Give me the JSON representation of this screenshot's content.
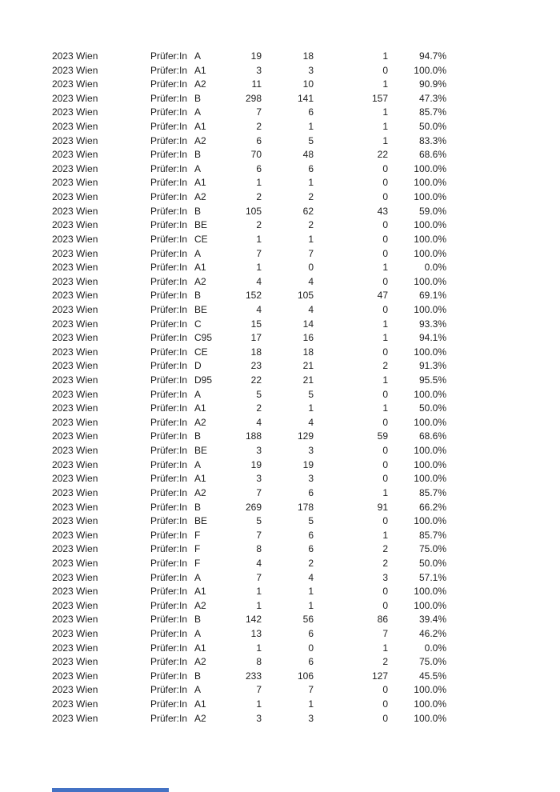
{
  "colors": {
    "page_background": "#ffffff",
    "text": "#1d1d1d",
    "bottom_bar_fragment": "#4472c4"
  },
  "table": {
    "period_label": "2023 Wien",
    "examiner_label": "Prüfer:In",
    "rows": [
      {
        "category": "A",
        "n1": "19",
        "n2": "18",
        "n3": "1",
        "pct": "94.7%"
      },
      {
        "category": "A1",
        "n1": "3",
        "n2": "3",
        "n3": "0",
        "pct": "100.0%"
      },
      {
        "category": "A2",
        "n1": "11",
        "n2": "10",
        "n3": "1",
        "pct": "90.9%"
      },
      {
        "category": "B",
        "n1": "298",
        "n2": "141",
        "n3": "157",
        "pct": "47.3%"
      },
      {
        "category": "A",
        "n1": "7",
        "n2": "6",
        "n3": "1",
        "pct": "85.7%"
      },
      {
        "category": "A1",
        "n1": "2",
        "n2": "1",
        "n3": "1",
        "pct": "50.0%"
      },
      {
        "category": "A2",
        "n1": "6",
        "n2": "5",
        "n3": "1",
        "pct": "83.3%"
      },
      {
        "category": "B",
        "n1": "70",
        "n2": "48",
        "n3": "22",
        "pct": "68.6%"
      },
      {
        "category": "A",
        "n1": "6",
        "n2": "6",
        "n3": "0",
        "pct": "100.0%"
      },
      {
        "category": "A1",
        "n1": "1",
        "n2": "1",
        "n3": "0",
        "pct": "100.0%"
      },
      {
        "category": "A2",
        "n1": "2",
        "n2": "2",
        "n3": "0",
        "pct": "100.0%"
      },
      {
        "category": "B",
        "n1": "105",
        "n2": "62",
        "n3": "43",
        "pct": "59.0%"
      },
      {
        "category": "BE",
        "n1": "2",
        "n2": "2",
        "n3": "0",
        "pct": "100.0%"
      },
      {
        "category": "CE",
        "n1": "1",
        "n2": "1",
        "n3": "0",
        "pct": "100.0%"
      },
      {
        "category": "A",
        "n1": "7",
        "n2": "7",
        "n3": "0",
        "pct": "100.0%"
      },
      {
        "category": "A1",
        "n1": "1",
        "n2": "0",
        "n3": "1",
        "pct": "0.0%"
      },
      {
        "category": "A2",
        "n1": "4",
        "n2": "4",
        "n3": "0",
        "pct": "100.0%"
      },
      {
        "category": "B",
        "n1": "152",
        "n2": "105",
        "n3": "47",
        "pct": "69.1%"
      },
      {
        "category": "BE",
        "n1": "4",
        "n2": "4",
        "n3": "0",
        "pct": "100.0%"
      },
      {
        "category": "C",
        "n1": "15",
        "n2": "14",
        "n3": "1",
        "pct": "93.3%"
      },
      {
        "category": "C95",
        "n1": "17",
        "n2": "16",
        "n3": "1",
        "pct": "94.1%"
      },
      {
        "category": "CE",
        "n1": "18",
        "n2": "18",
        "n3": "0",
        "pct": "100.0%"
      },
      {
        "category": "D",
        "n1": "23",
        "n2": "21",
        "n3": "2",
        "pct": "91.3%"
      },
      {
        "category": "D95",
        "n1": "22",
        "n2": "21",
        "n3": "1",
        "pct": "95.5%"
      },
      {
        "category": "A",
        "n1": "5",
        "n2": "5",
        "n3": "0",
        "pct": "100.0%"
      },
      {
        "category": "A1",
        "n1": "2",
        "n2": "1",
        "n3": "1",
        "pct": "50.0%"
      },
      {
        "category": "A2",
        "n1": "4",
        "n2": "4",
        "n3": "0",
        "pct": "100.0%"
      },
      {
        "category": "B",
        "n1": "188",
        "n2": "129",
        "n3": "59",
        "pct": "68.6%"
      },
      {
        "category": "BE",
        "n1": "3",
        "n2": "3",
        "n3": "0",
        "pct": "100.0%"
      },
      {
        "category": "A",
        "n1": "19",
        "n2": "19",
        "n3": "0",
        "pct": "100.0%"
      },
      {
        "category": "A1",
        "n1": "3",
        "n2": "3",
        "n3": "0",
        "pct": "100.0%"
      },
      {
        "category": "A2",
        "n1": "7",
        "n2": "6",
        "n3": "1",
        "pct": "85.7%"
      },
      {
        "category": "B",
        "n1": "269",
        "n2": "178",
        "n3": "91",
        "pct": "66.2%"
      },
      {
        "category": "BE",
        "n1": "5",
        "n2": "5",
        "n3": "0",
        "pct": "100.0%"
      },
      {
        "category": "F",
        "n1": "7",
        "n2": "6",
        "n3": "1",
        "pct": "85.7%"
      },
      {
        "category": "F",
        "n1": "8",
        "n2": "6",
        "n3": "2",
        "pct": "75.0%"
      },
      {
        "category": "F",
        "n1": "4",
        "n2": "2",
        "n3": "2",
        "pct": "50.0%"
      },
      {
        "category": "A",
        "n1": "7",
        "n2": "4",
        "n3": "3",
        "pct": "57.1%"
      },
      {
        "category": "A1",
        "n1": "1",
        "n2": "1",
        "n3": "0",
        "pct": "100.0%"
      },
      {
        "category": "A2",
        "n1": "1",
        "n2": "1",
        "n3": "0",
        "pct": "100.0%"
      },
      {
        "category": "B",
        "n1": "142",
        "n2": "56",
        "n3": "86",
        "pct": "39.4%"
      },
      {
        "category": "A",
        "n1": "13",
        "n2": "6",
        "n3": "7",
        "pct": "46.2%"
      },
      {
        "category": "A1",
        "n1": "1",
        "n2": "0",
        "n3": "1",
        "pct": "0.0%"
      },
      {
        "category": "A2",
        "n1": "8",
        "n2": "6",
        "n3": "2",
        "pct": "75.0%"
      },
      {
        "category": "B",
        "n1": "233",
        "n2": "106",
        "n3": "127",
        "pct": "45.5%"
      },
      {
        "category": "A",
        "n1": "7",
        "n2": "7",
        "n3": "0",
        "pct": "100.0%"
      },
      {
        "category": "A1",
        "n1": "1",
        "n2": "1",
        "n3": "0",
        "pct": "100.0%"
      },
      {
        "category": "A2",
        "n1": "3",
        "n2": "3",
        "n3": "0",
        "pct": "100.0%"
      }
    ]
  }
}
